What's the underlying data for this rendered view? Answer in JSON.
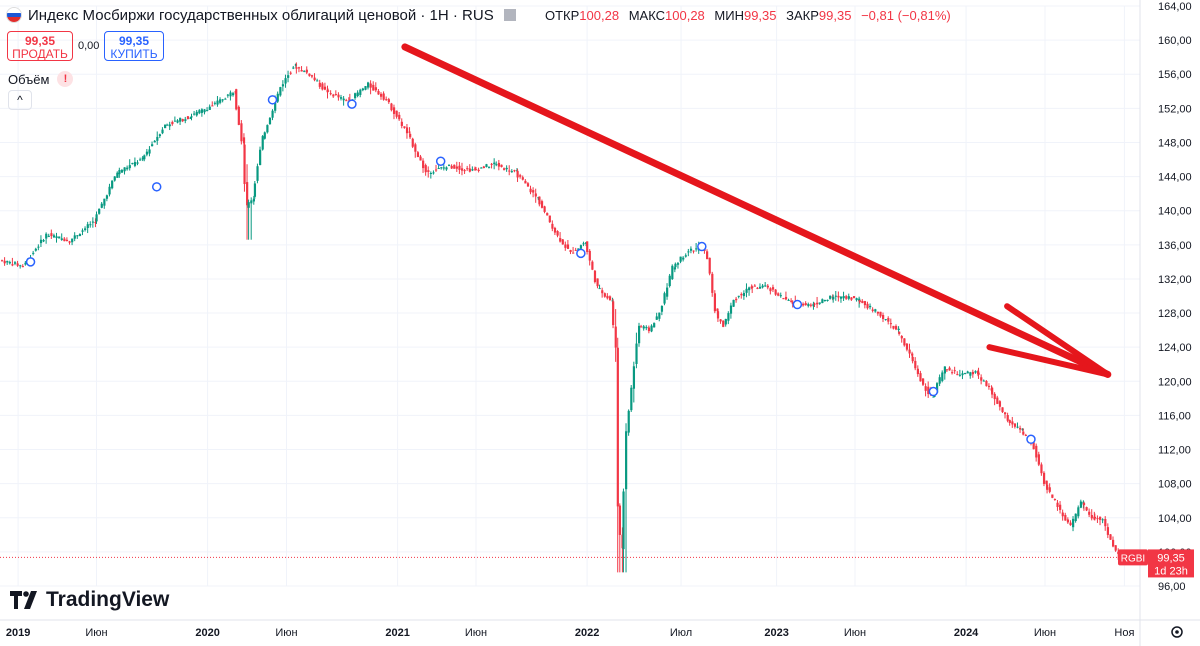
{
  "header": {
    "title": "Индекс Мосбиржи государственных облигаций ценовой · 1H · RUS",
    "flag_colors": [
      "#ffffff",
      "#1c57d6",
      "#e12d2d"
    ]
  },
  "ohlc": {
    "open_label": "ОТКР",
    "open": "100,28",
    "high_label": "МАКС",
    "high": "100,28",
    "low_label": "МИН",
    "low": "99,35",
    "close_label": "ЗАКР",
    "close": "99,35",
    "change": "−0,81 (−0,81%)"
  },
  "trade": {
    "sell_price": "99,35",
    "sell_label": "ПРОДАТЬ",
    "spread": "0,00",
    "buy_price": "99,35",
    "buy_label": "КУПИТЬ"
  },
  "volume": {
    "label": "Объём",
    "warning": "!"
  },
  "logo": {
    "text": "TradingView"
  },
  "price_tag": {
    "symbol": "RGBI",
    "price": "99,35",
    "countdown": "1d 23h"
  },
  "colors": {
    "up": "#089981",
    "down": "#f23645",
    "arrow": "#e5161c",
    "grid": "#f0f3fa",
    "axis_text": "#131722",
    "marker": "#2962ff"
  },
  "chart_data": {
    "type": "candlestick",
    "y_axis": {
      "range": [
        96,
        164
      ],
      "ticks": [
        164,
        160,
        156,
        152,
        148,
        144,
        140,
        136,
        132,
        128,
        124,
        120,
        116,
        112,
        108,
        104,
        100,
        96
      ],
      "tick_labels": [
        "164,00",
        "160,00",
        "156,00",
        "152,00",
        "148,00",
        "144,00",
        "140,00",
        "136,00",
        "132,00",
        "128,00",
        "124,00",
        "120,00",
        "116,00",
        "112,00",
        "108,00",
        "104,00",
        "100,00",
        "96,00"
      ]
    },
    "x_axis": {
      "range": [
        "2018-12",
        "2024-12"
      ],
      "ticks": [
        {
          "date": "2019-01",
          "label": "2019"
        },
        {
          "date": "2019-06",
          "label": "Июн"
        },
        {
          "date": "2020-01",
          "label": "2020"
        },
        {
          "date": "2020-06",
          "label": "Июн"
        },
        {
          "date": "2021-01",
          "label": "2021"
        },
        {
          "date": "2021-06",
          "label": "Июн"
        },
        {
          "date": "2022-01",
          "label": "2022"
        },
        {
          "date": "2022-07",
          "label": "Июл"
        },
        {
          "date": "2023-01",
          "label": "2023"
        },
        {
          "date": "2023-06",
          "label": "Июн"
        },
        {
          "date": "2024-01",
          "label": "2024"
        },
        {
          "date": "2024-06",
          "label": "Июн"
        },
        {
          "date": "2024-11",
          "label": "Ноя"
        }
      ]
    },
    "last_price": 99.35,
    "price_path": [
      [
        "2018-12-01",
        134.2
      ],
      [
        "2019-01-15",
        133.5
      ],
      [
        "2019-03-01",
        137.2
      ],
      [
        "2019-04-15",
        136.5
      ],
      [
        "2019-06-01",
        138.8
      ],
      [
        "2019-07-15",
        144.5
      ],
      [
        "2019-09-01",
        146.0
      ],
      [
        "2019-10-15",
        150.0
      ],
      [
        "2019-12-01",
        151.0
      ],
      [
        "2020-01-20",
        152.5
      ],
      [
        "2020-02-25",
        154.0
      ],
      [
        "2020-03-12",
        148.0
      ],
      [
        "2020-03-20",
        140.5
      ],
      [
        "2020-04-01",
        141.5
      ],
      [
        "2020-04-20",
        148.5
      ],
      [
        "2020-05-25",
        154.5
      ],
      [
        "2020-06-20",
        157.0
      ],
      [
        "2020-07-20",
        156.0
      ],
      [
        "2020-08-20",
        154.0
      ],
      [
        "2020-10-01",
        152.8
      ],
      [
        "2020-11-10",
        154.8
      ],
      [
        "2020-12-15",
        153.0
      ],
      [
        "2021-01-25",
        149.0
      ],
      [
        "2021-03-01",
        144.5
      ],
      [
        "2021-04-15",
        145.2
      ],
      [
        "2021-06-01",
        144.7
      ],
      [
        "2021-07-10",
        145.5
      ],
      [
        "2021-08-20",
        144.5
      ],
      [
        "2021-10-01",
        141.5
      ],
      [
        "2021-11-10",
        137.0
      ],
      [
        "2021-12-05",
        135.0
      ],
      [
        "2022-01-01",
        136.3
      ],
      [
        "2022-01-25",
        131.0
      ],
      [
        "2022-02-20",
        129.5
      ],
      [
        "2022-03-01",
        124.0
      ],
      [
        "2022-03-05",
        105.5
      ],
      [
        "2022-03-12",
        100.5
      ],
      [
        "2022-03-22",
        114.0
      ],
      [
        "2022-04-15",
        126.5
      ],
      [
        "2022-05-05",
        126.0
      ],
      [
        "2022-05-25",
        128.0
      ],
      [
        "2022-06-20",
        133.5
      ],
      [
        "2022-07-20",
        135.3
      ],
      [
        "2022-08-15",
        135.7
      ],
      [
        "2022-08-25",
        134.5
      ],
      [
        "2022-09-10",
        128.0
      ],
      [
        "2022-09-25",
        126.5
      ],
      [
        "2022-10-15",
        129.5
      ],
      [
        "2022-11-15",
        131.0
      ],
      [
        "2022-12-20",
        131.0
      ],
      [
        "2023-02-01",
        129.2
      ],
      [
        "2023-03-15",
        129.0
      ],
      [
        "2023-04-20",
        129.8
      ],
      [
        "2023-05-15",
        130.0
      ],
      [
        "2023-06-10",
        129.6
      ],
      [
        "2023-07-20",
        128.0
      ],
      [
        "2023-08-25",
        126.0
      ],
      [
        "2023-09-20",
        123.0
      ],
      [
        "2023-10-15",
        119.5
      ],
      [
        "2023-11-01",
        118.2
      ],
      [
        "2023-11-25",
        121.5
      ],
      [
        "2023-12-25",
        120.8
      ],
      [
        "2024-01-25",
        121.0
      ],
      [
        "2024-02-20",
        119.0
      ],
      [
        "2024-03-25",
        115.5
      ],
      [
        "2024-04-20",
        114.2
      ],
      [
        "2024-05-15",
        112.2
      ],
      [
        "2024-06-05",
        108.0
      ],
      [
        "2024-07-05",
        104.8
      ],
      [
        "2024-07-25",
        103.0
      ],
      [
        "2024-08-15",
        105.8
      ],
      [
        "2024-09-05",
        104.0
      ],
      [
        "2024-09-25",
        103.8
      ],
      [
        "2024-10-15",
        100.6
      ],
      [
        "2024-10-29",
        99.35
      ]
    ],
    "markers": [
      [
        "2019-01-25",
        134.0
      ],
      [
        "2019-09-25",
        142.8
      ],
      [
        "2020-05-05",
        153.0
      ],
      [
        "2020-10-05",
        152.5
      ],
      [
        "2021-03-25",
        145.8
      ],
      [
        "2021-12-20",
        135.0
      ],
      [
        "2022-08-10",
        135.8
      ],
      [
        "2023-02-10",
        129.0
      ],
      [
        "2023-10-30",
        118.8
      ],
      [
        "2024-05-05",
        113.2
      ]
    ],
    "annotations": [
      {
        "type": "arrow",
        "from": [
          "2021-01-15",
          159.2
        ],
        "to": [
          "2024-09-30",
          120.8
        ]
      }
    ]
  }
}
